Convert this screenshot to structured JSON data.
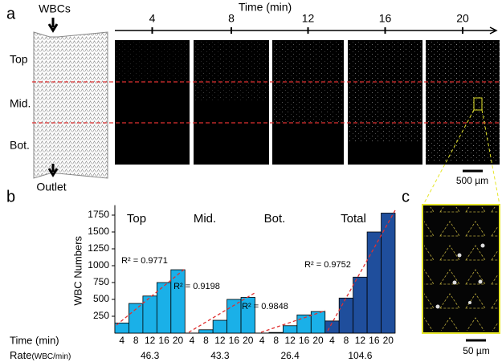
{
  "panel_labels": [
    "a",
    "b",
    "c"
  ],
  "panel_a": {
    "inlet": "WBCs",
    "outlet": "Outlet",
    "regions": [
      "Top",
      "Mid.",
      "Bot."
    ],
    "time_label": "Time (min)",
    "times": [
      4,
      8,
      12,
      16,
      20
    ],
    "scale_bar": "500 µm"
  },
  "panel_c": {
    "scale_bar": "50 µm"
  },
  "chart_data": {
    "type": "bar",
    "ylabel": "WBC Numbers",
    "xlabel": "Time (min)",
    "categories": [
      "4",
      "8",
      "12",
      "16",
      "20"
    ],
    "series": [
      {
        "name": "Top",
        "color": "#1ab0e8",
        "values": [
          150,
          440,
          550,
          750,
          940
        ]
      },
      {
        "name": "Mid.",
        "color": "#1ab0e8",
        "values": [
          0,
          50,
          190,
          500,
          530
        ]
      },
      {
        "name": "Bot.",
        "color": "#1ab0e8",
        "values": [
          0,
          10,
          110,
          270,
          320
        ]
      },
      {
        "name": "Total",
        "color": "#1f4e9c",
        "values": [
          180,
          520,
          830,
          1500,
          1780
        ]
      }
    ],
    "annotations": [
      "R² = 0.9771",
      "R² = 0.9198",
      "R² = 0.9848",
      "R² = 0.9752"
    ],
    "rate_label": "Rate",
    "rate_unit": "(WBC/min)",
    "rates": [
      46.3,
      43.3,
      26.4,
      104.6
    ],
    "ylim": [
      0,
      1850
    ],
    "yticks": [
      250,
      500,
      750,
      1000,
      1250,
      1500,
      1750
    ]
  }
}
